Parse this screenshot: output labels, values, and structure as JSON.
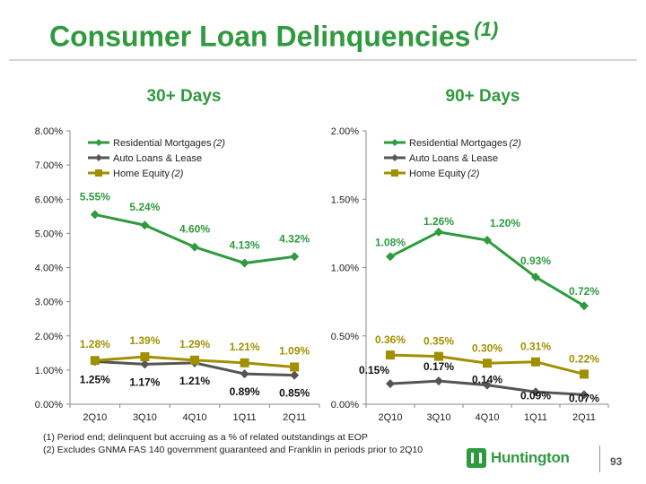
{
  "page": {
    "title": "Consumer Loan Delinquencies",
    "title_note": "(1)",
    "footnotes": [
      "(1)  Period end; delinquent but accruing as a % of related outstandings at EOP",
      "(2)  Excludes GNMA FAS 140 government guaranteed and Franklin in periods prior to 2Q10"
    ],
    "logo_text": "Huntington",
    "page_number": "93"
  },
  "colors": {
    "residential": "#2f9a3e",
    "auto": "#555555",
    "home_equity": "#a09000",
    "title": "#2f9a3e"
  },
  "chart_data": [
    {
      "type": "line",
      "heading": "30+ Days",
      "categories": [
        "2Q10",
        "3Q10",
        "4Q10",
        "1Q11",
        "2Q11"
      ],
      "ylim": [
        0,
        8
      ],
      "yticks": [
        "0.00%",
        "1.00%",
        "2.00%",
        "3.00%",
        "4.00%",
        "5.00%",
        "6.00%",
        "7.00%",
        "8.00%"
      ],
      "legend_position": "top-left",
      "series": [
        {
          "name": "Residential Mortgages",
          "note": "(2)",
          "values": [
            5.55,
            5.24,
            4.6,
            4.13,
            4.32
          ],
          "labels": [
            "5.55%",
            "5.24%",
            "4.60%",
            "4.13%",
            "4.32%"
          ]
        },
        {
          "name": "Auto Loans & Lease",
          "note": "",
          "values": [
            1.25,
            1.17,
            1.21,
            0.89,
            0.85
          ],
          "labels": [
            "1.25%",
            "1.17%",
            "1.21%",
            "0.89%",
            "0.85%"
          ]
        },
        {
          "name": "Home Equity",
          "note": "(2)",
          "values": [
            1.28,
            1.39,
            1.29,
            1.21,
            1.09
          ],
          "labels": [
            "1.28%",
            "1.39%",
            "1.29%",
            "1.21%",
            "1.09%"
          ]
        }
      ]
    },
    {
      "type": "line",
      "heading": "90+ Days",
      "categories": [
        "2Q10",
        "3Q10",
        "4Q10",
        "1Q11",
        "2Q11"
      ],
      "ylim": [
        0,
        2
      ],
      "yticks": [
        "0.00%",
        "0.50%",
        "1.00%",
        "1.50%",
        "2.00%"
      ],
      "legend_position": "top-left",
      "series": [
        {
          "name": "Residential Mortgages",
          "note": "(2)",
          "values": [
            1.08,
            1.26,
            1.2,
            0.93,
            0.72
          ],
          "labels": [
            "1.08%",
            "1.26%",
            "1.20%",
            "0.93%",
            "0.72%"
          ]
        },
        {
          "name": "Auto Loans & Lease",
          "note": "",
          "values": [
            0.15,
            0.17,
            0.14,
            0.09,
            0.07
          ],
          "labels": [
            "0.15%",
            "0.17%",
            "0.14%",
            "0.09%",
            "0.07%"
          ]
        },
        {
          "name": "Home Equity",
          "note": "(2)",
          "values": [
            0.36,
            0.35,
            0.3,
            0.31,
            0.22
          ],
          "labels": [
            "0.36%",
            "0.35%",
            "0.30%",
            "0.31%",
            "0.22%"
          ]
        }
      ]
    }
  ]
}
